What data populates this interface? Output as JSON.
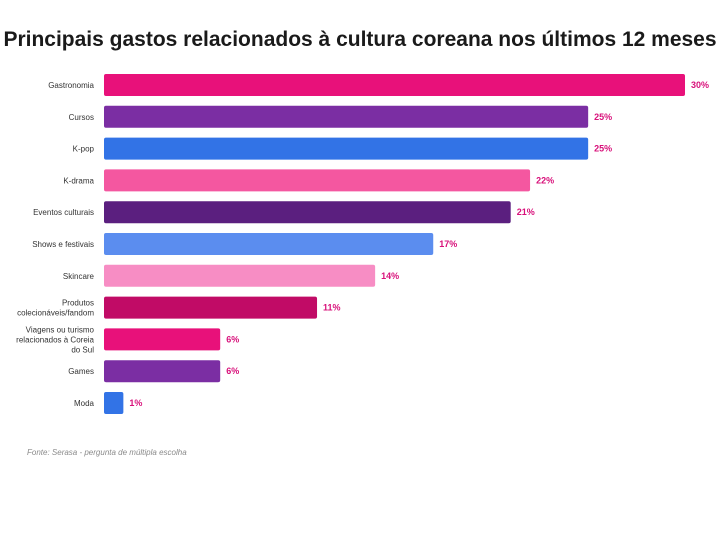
{
  "chart_data": {
    "type": "bar",
    "orientation": "horizontal",
    "title": "Principais gastos relacionados à cultura coreana nos últimos 12 meses",
    "categories": [
      "Gastronomia",
      "Cursos",
      "K-pop",
      "K-drama",
      "Eventos culturais",
      "Shows e festivais",
      "Skincare",
      "Produtos colecionáveis/fandom",
      "Viagens ou turismo relacionados à Coreia do Sul",
      "Games",
      "Moda"
    ],
    "category_lines": [
      [
        "Gastronomia"
      ],
      [
        "Cursos"
      ],
      [
        "K-pop"
      ],
      [
        "K-drama"
      ],
      [
        "Eventos culturais"
      ],
      [
        "Shows e festivais"
      ],
      [
        "Skincare"
      ],
      [
        "Produtos",
        "colecionáveis/fandom"
      ],
      [
        "Viagens ou turismo",
        "relacionados à Coreia",
        "do Sul"
      ],
      [
        "Games"
      ],
      [
        "Moda"
      ]
    ],
    "values": [
      30,
      25,
      25,
      22,
      21,
      17,
      14,
      11,
      6,
      6,
      1
    ],
    "value_labels": [
      "30%",
      "25%",
      "25%",
      "22%",
      "21%",
      "17%",
      "14%",
      "11%",
      "6%",
      "6%",
      "1%"
    ],
    "unit": "%",
    "colors": [
      "#e8117a",
      "#7b2ea3",
      "#3273e6",
      "#f457a0",
      "#5b1f7f",
      "#5b8def",
      "#f78dc4",
      "#c10b66",
      "#e8117a",
      "#7b2ea3",
      "#3273e6"
    ],
    "value_label_color": "#d8107a",
    "xlim": [
      0,
      30
    ],
    "grid": false,
    "legend": "none",
    "source": "Fonte: Serasa - pergunta de múltipla escolha"
  }
}
